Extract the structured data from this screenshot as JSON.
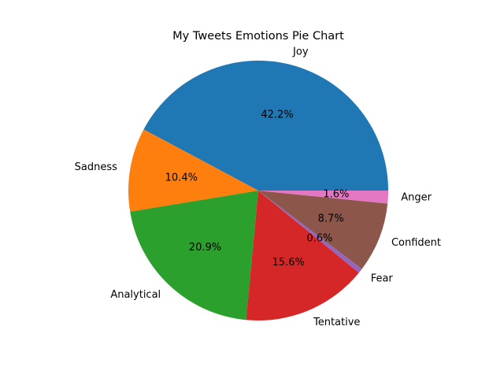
{
  "chart_data": {
    "type": "pie",
    "title": "My Tweets Emotions Pie Chart",
    "start_angle": 0,
    "direction": "counterclockwise",
    "slices": [
      {
        "label": "Joy",
        "value": 42.2,
        "pct_label": "42.2%",
        "color": "#1f77b4"
      },
      {
        "label": "Sadness",
        "value": 10.4,
        "pct_label": "10.4%",
        "color": "#ff7f0e"
      },
      {
        "label": "Analytical",
        "value": 20.9,
        "pct_label": "20.9%",
        "color": "#2ca02c"
      },
      {
        "label": "Tentative",
        "value": 15.6,
        "pct_label": "15.6%",
        "color": "#d62728"
      },
      {
        "label": "Fear",
        "value": 0.6,
        "pct_label": "0.6%",
        "color": "#9467bd"
      },
      {
        "label": "Confident",
        "value": 8.7,
        "pct_label": "8.7%",
        "color": "#8c564b"
      },
      {
        "label": "Anger",
        "value": 1.6,
        "pct_label": "1.6%",
        "color": "#e377c2"
      }
    ]
  }
}
